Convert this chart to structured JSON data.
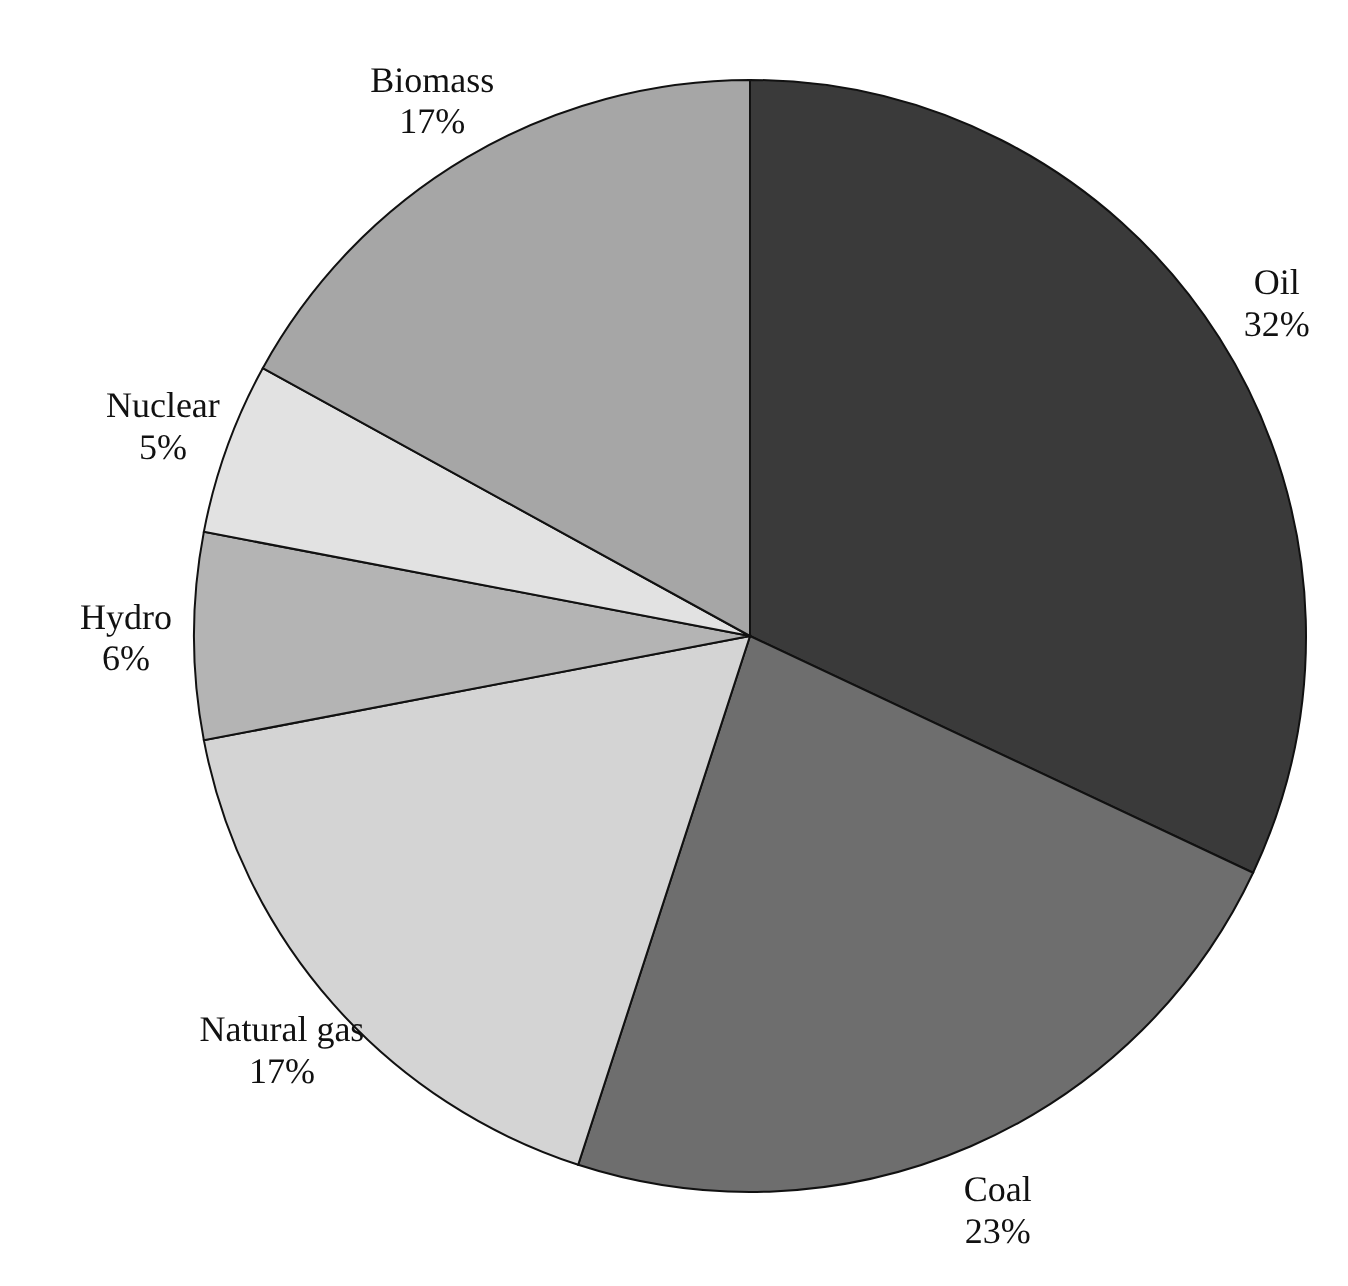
{
  "chart_data": {
    "type": "pie",
    "categories": [
      "Oil",
      "Coal",
      "Natural gas",
      "Hydro",
      "Nuclear",
      "Biomass"
    ],
    "values": [
      32,
      23,
      17,
      6,
      5,
      17
    ],
    "value_labels": [
      "32%",
      "23%",
      "17%",
      "6%",
      "5%",
      "17%"
    ],
    "colors": [
      "#3a3a3a",
      "#6e6e6e",
      "#d4d4d4",
      "#b4b4b4",
      "#e2e2e2",
      "#a6a6a6"
    ]
  }
}
